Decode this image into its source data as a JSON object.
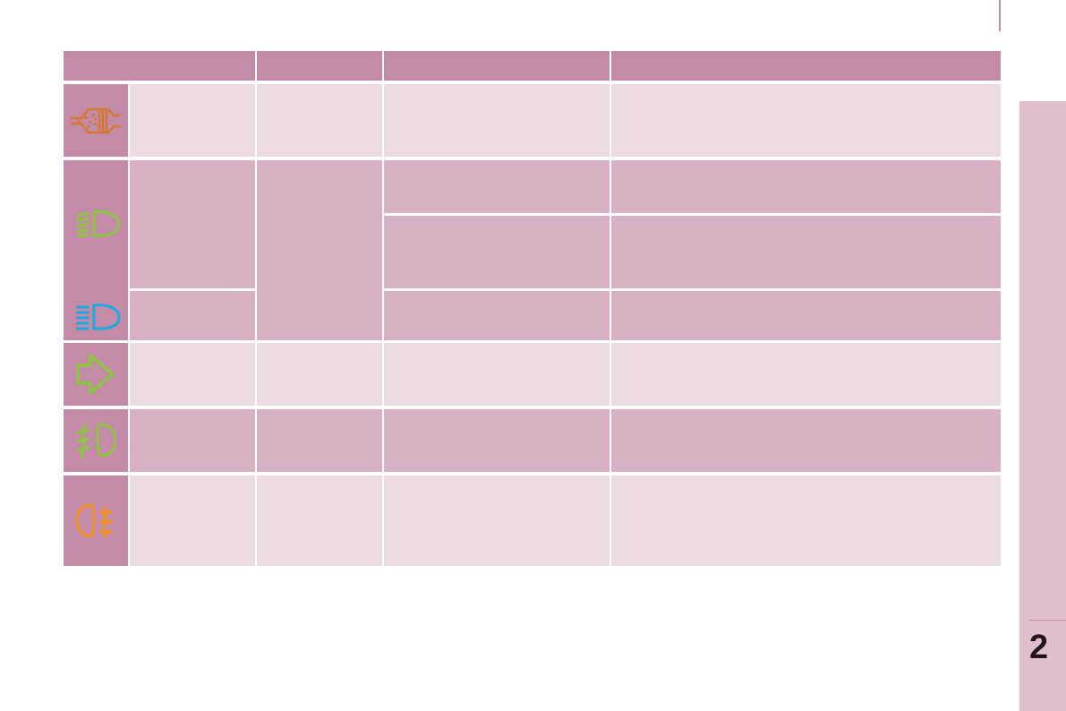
{
  "page": {
    "number": "2"
  },
  "colors": {
    "header": "#c48ba8",
    "row_dark": "#d8b0c4",
    "row_light": "#ecdbe3",
    "side_tab": "#dfbfcf"
  },
  "table": {
    "rows": [
      {
        "icon": "particle-filter-icon",
        "icon_color": "#d8782c"
      },
      {
        "icon": "dipped-beam-headlamp-icon",
        "icon_color": "#8cc63f"
      },
      {
        "icon": "main-beam-headlamp-icon",
        "icon_color": "#1ba9e1"
      },
      {
        "icon": "sidelamps-arrow-icon",
        "icon_color": "#8cc63f"
      },
      {
        "icon": "front-foglamp-icon",
        "icon_color": "#8cc63f"
      },
      {
        "icon": "rear-foglamp-icon",
        "icon_color": "#f39021"
      }
    ]
  }
}
